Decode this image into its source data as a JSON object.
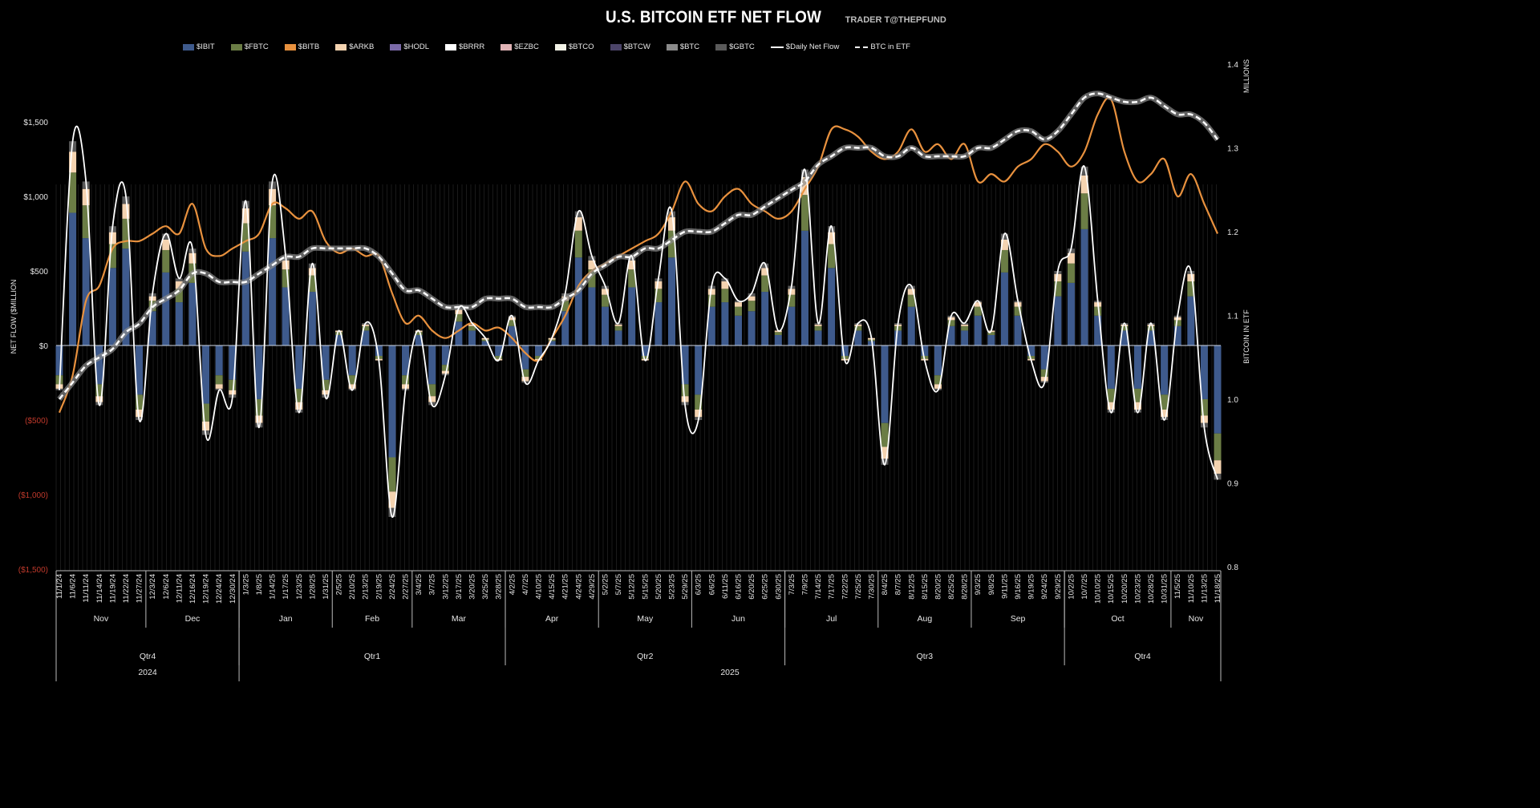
{
  "header": {
    "title": "U.S. BITCOIN ETF NET FLOW",
    "subtitle": "TRADER T@THEPFUND"
  },
  "legend": [
    {
      "label": "$IBIT",
      "color": "#3e5a8c",
      "kind": "bar"
    },
    {
      "label": "$FBTC",
      "color": "#6b7d45",
      "kind": "bar"
    },
    {
      "label": "$BITB",
      "color": "#e8913e",
      "kind": "bar"
    },
    {
      "label": "$ARKB",
      "color": "#f4d3b0",
      "kind": "bar"
    },
    {
      "label": "$HODL",
      "color": "#7b6aa8",
      "kind": "bar"
    },
    {
      "label": "$BRRR",
      "color": "#ffffff",
      "kind": "bar"
    },
    {
      "label": "$EZBC",
      "color": "#e0b4b6",
      "kind": "bar"
    },
    {
      "label": "$BTCO",
      "color": "#f2f2e6",
      "kind": "bar"
    },
    {
      "label": "$BTCW",
      "color": "#4b4468",
      "kind": "bar"
    },
    {
      "label": "$BTC",
      "color": "#8a8a8a",
      "kind": "bar"
    },
    {
      "label": "$GBTC",
      "color": "#5a5a5a",
      "kind": "bar"
    },
    {
      "label": "$Daily Net Flow",
      "color": "#ffffff",
      "kind": "line"
    },
    {
      "label": "BTC in ETF",
      "color": "#ffffff",
      "kind": "dash"
    }
  ],
  "chart_data": {
    "type": "bar",
    "title": "U.S. BITCOIN ETF NET FLOW",
    "ylabel": "NET FLOW ($MILLION",
    "y2label": "BITCOIN IN ETF",
    "y2unit": "MILLIONS",
    "ylim": [
      -1500,
      1500
    ],
    "y2lim": [
      0.8,
      1.4
    ],
    "yticks": [
      "$1,500",
      "$1,000",
      "$500",
      "$0",
      "($500)",
      "($1,000)",
      "($1,500)"
    ],
    "yticks_values": [
      1500,
      1000,
      500,
      0,
      -500,
      -1000,
      -1500
    ],
    "y2ticks": [
      "1.4",
      "1.3",
      "1.2",
      "1.1",
      "1.0",
      "0.9",
      "0.8"
    ],
    "y2ticks_values": [
      1.4,
      1.3,
      1.2,
      1.1,
      1.0,
      0.9,
      0.8
    ],
    "categories": [
      "11/1/24",
      "11/6/24",
      "11/11/24",
      "11/14/24",
      "11/19/24",
      "11/22/24",
      "11/27/24",
      "12/3/24",
      "12/6/24",
      "12/11/24",
      "12/16/24",
      "12/19/24",
      "12/24/24",
      "12/30/24",
      "1/3/25",
      "1/8/25",
      "1/14/25",
      "1/17/25",
      "1/23/25",
      "1/28/25",
      "1/31/25",
      "2/5/25",
      "2/10/25",
      "2/13/25",
      "2/19/25",
      "2/24/25",
      "2/27/25",
      "3/4/25",
      "3/7/25",
      "3/12/25",
      "3/17/25",
      "3/20/25",
      "3/25/25",
      "3/28/25",
      "4/2/25",
      "4/7/25",
      "4/10/25",
      "4/15/25",
      "4/21/25",
      "4/24/25",
      "4/29/25",
      "5/2/25",
      "5/7/25",
      "5/12/25",
      "5/15/25",
      "5/20/25",
      "5/23/25",
      "5/29/25",
      "6/3/25",
      "6/6/25",
      "6/11/25",
      "6/16/25",
      "6/20/25",
      "6/25/25",
      "6/30/25",
      "7/3/25",
      "7/9/25",
      "7/14/25",
      "7/17/25",
      "7/22/25",
      "7/25/25",
      "7/30/25",
      "8/4/25",
      "8/7/25",
      "8/12/25",
      "8/15/25",
      "8/20/25",
      "8/25/25",
      "8/28/25",
      "9/3/25",
      "9/8/25",
      "9/11/25",
      "9/16/25",
      "9/19/25",
      "9/24/25",
      "9/29/25",
      "10/2/25",
      "10/7/25",
      "10/10/25",
      "10/15/25",
      "10/20/25",
      "10/23/25",
      "10/28/25",
      "10/31/25",
      "11/5/25",
      "11/10/25",
      "11/13/25",
      "11/18/25"
    ],
    "months": [
      {
        "label": "Nov",
        "start": 0,
        "end": 6
      },
      {
        "label": "Dec",
        "start": 7,
        "end": 13
      },
      {
        "label": "Jan",
        "start": 14,
        "end": 20
      },
      {
        "label": "Feb",
        "start": 21,
        "end": 26
      },
      {
        "label": "Mar",
        "start": 27,
        "end": 33
      },
      {
        "label": "Apr",
        "start": 34,
        "end": 40
      },
      {
        "label": "May",
        "start": 41,
        "end": 47
      },
      {
        "label": "Jun",
        "start": 48,
        "end": 54
      },
      {
        "label": "Jul",
        "start": 55,
        "end": 61
      },
      {
        "label": "Aug",
        "start": 62,
        "end": 68
      },
      {
        "label": "Sep",
        "start": 69,
        "end": 75
      },
      {
        "label": "Oct",
        "start": 76,
        "end": 83
      },
      {
        "label": "Nov",
        "start": 84,
        "end": 87
      }
    ],
    "quarters": [
      {
        "label": "Qtr4",
        "start": 0,
        "end": 13
      },
      {
        "label": "Qtr1",
        "start": 14,
        "end": 33
      },
      {
        "label": "Qtr2",
        "start": 34,
        "end": 54
      },
      {
        "label": "Qtr3",
        "start": 55,
        "end": 75
      },
      {
        "label": "Qtr4",
        "start": 76,
        "end": 87
      }
    ],
    "years": [
      {
        "label": "2024",
        "start": 0,
        "end": 13
      },
      {
        "label": "2025",
        "start": 14,
        "end": 87
      }
    ],
    "series": [
      {
        "name": "$IBIT",
        "color": "#3e5a8c",
        "values": [
          -200,
          890,
          720,
          -260,
          520,
          650,
          -330,
          230,
          490,
          290,
          420,
          -390,
          -200,
          -230,
          630,
          -360,
          720,
          390,
          -290,
          360,
          -230,
          70,
          -200,
          100,
          -70,
          -750,
          -200,
          70,
          -260,
          -130,
          160,
          100,
          30,
          -70,
          130,
          -160,
          -70,
          30,
          230,
          590,
          390,
          260,
          100,
          390,
          -70,
          290,
          590,
          -260,
          -330,
          260,
          290,
          200,
          230,
          360,
          70,
          260,
          770,
          100,
          520,
          -70,
          100,
          30,
          -520,
          100,
          260,
          -70,
          -200,
          130,
          100,
          200,
          70,
          490,
          200,
          -70,
          -160,
          330,
          420,
          780,
          200,
          -290,
          100,
          -290,
          100,
          -330,
          130,
          330,
          -360,
          -590
        ]
      },
      {
        "name": "$FBTC",
        "color": "#6b7d45",
        "values": [
          -60,
          270,
          220,
          -80,
          160,
          200,
          -100,
          70,
          150,
          90,
          130,
          -120,
          -60,
          -70,
          190,
          -110,
          220,
          120,
          -90,
          110,
          -70,
          20,
          -60,
          30,
          -20,
          -230,
          -60,
          20,
          -80,
          -40,
          50,
          30,
          10,
          -20,
          40,
          -50,
          -20,
          10,
          70,
          180,
          120,
          80,
          30,
          120,
          -20,
          90,
          180,
          -80,
          -100,
          80,
          90,
          60,
          70,
          110,
          20,
          80,
          240,
          30,
          160,
          -20,
          30,
          10,
          -160,
          30,
          80,
          -20,
          -60,
          40,
          30,
          60,
          20,
          150,
          60,
          -20,
          -50,
          100,
          130,
          240,
          60,
          -90,
          30,
          -90,
          30,
          -100,
          40,
          100,
          -110,
          -180
        ]
      },
      {
        "name": "$ARKB",
        "color": "#f4d3b0",
        "values": [
          -30,
          140,
          110,
          -40,
          80,
          100,
          -50,
          30,
          70,
          50,
          70,
          -60,
          -30,
          -30,
          100,
          -50,
          110,
          60,
          -50,
          50,
          -30,
          10,
          -30,
          10,
          -10,
          -110,
          -30,
          10,
          -40,
          -20,
          30,
          10,
          10,
          -10,
          20,
          -30,
          -10,
          10,
          30,
          90,
          60,
          40,
          10,
          60,
          -10,
          50,
          90,
          -40,
          -50,
          40,
          50,
          30,
          30,
          50,
          10,
          40,
          120,
          10,
          80,
          -10,
          10,
          10,
          -80,
          10,
          40,
          -10,
          -30,
          20,
          10,
          30,
          10,
          70,
          30,
          -10,
          -30,
          50,
          70,
          120,
          30,
          -50,
          10,
          -50,
          10,
          -50,
          20,
          50,
          -50,
          -90
        ]
      },
      {
        "name": "$GBTC",
        "color": "#5a5a5a",
        "values": [
          -10,
          70,
          50,
          -20,
          40,
          50,
          -20,
          20,
          40,
          20,
          30,
          -30,
          -10,
          -20,
          50,
          -30,
          50,
          30,
          -20,
          30,
          -20,
          0,
          -10,
          10,
          0,
          -60,
          -10,
          0,
          -20,
          -10,
          10,
          10,
          0,
          0,
          10,
          -10,
          0,
          0,
          20,
          40,
          30,
          20,
          10,
          30,
          0,
          20,
          40,
          -20,
          -20,
          20,
          20,
          10,
          20,
          30,
          0,
          20,
          50,
          10,
          40,
          0,
          10,
          0,
          -40,
          10,
          20,
          0,
          -10,
          10,
          10,
          10,
          0,
          40,
          10,
          0,
          -10,
          20,
          30,
          60,
          10,
          -20,
          10,
          -20,
          10,
          -20,
          10,
          20,
          -30,
          -40
        ]
      },
      {
        "name": "$Daily Net Flow",
        "type": "line",
        "color": "#ffffff",
        "values": [
          -300,
          1370,
          1100,
          -400,
          800,
          1000,
          -500,
          350,
          750,
          450,
          650,
          -600,
          -300,
          -350,
          970,
          -550,
          1100,
          600,
          -450,
          550,
          -350,
          100,
          -300,
          150,
          -100,
          -1150,
          -300,
          100,
          -400,
          -200,
          250,
          150,
          50,
          -100,
          200,
          -250,
          -100,
          50,
          350,
          900,
          600,
          400,
          150,
          600,
          -100,
          450,
          900,
          -400,
          -500,
          400,
          450,
          300,
          350,
          550,
          100,
          400,
          1180,
          150,
          800,
          -100,
          150,
          50,
          -800,
          150,
          400,
          -100,
          -300,
          200,
          150,
          300,
          100,
          750,
          300,
          -100,
          -250,
          500,
          650,
          1200,
          300,
          -450,
          150,
          -450,
          150,
          -500,
          200,
          500,
          -550,
          -900
        ]
      },
      {
        "name": "BTC in ETF",
        "type": "line",
        "axis": "right",
        "color": "#ffffff",
        "values": [
          1.0,
          1.02,
          1.04,
          1.05,
          1.06,
          1.08,
          1.09,
          1.11,
          1.12,
          1.13,
          1.15,
          1.15,
          1.14,
          1.14,
          1.14,
          1.15,
          1.16,
          1.17,
          1.17,
          1.18,
          1.18,
          1.18,
          1.18,
          1.18,
          1.17,
          1.15,
          1.13,
          1.13,
          1.12,
          1.11,
          1.11,
          1.11,
          1.12,
          1.12,
          1.12,
          1.11,
          1.11,
          1.11,
          1.12,
          1.13,
          1.15,
          1.16,
          1.17,
          1.17,
          1.18,
          1.18,
          1.19,
          1.2,
          1.2,
          1.2,
          1.21,
          1.22,
          1.22,
          1.23,
          1.24,
          1.25,
          1.26,
          1.28,
          1.29,
          1.3,
          1.3,
          1.3,
          1.29,
          1.29,
          1.3,
          1.29,
          1.29,
          1.29,
          1.29,
          1.3,
          1.3,
          1.31,
          1.32,
          1.32,
          1.31,
          1.32,
          1.34,
          1.36,
          1.365,
          1.36,
          1.355,
          1.355,
          1.36,
          1.35,
          1.34,
          1.34,
          1.33,
          1.31
        ]
      },
      {
        "name": "",
        "type": "line",
        "color": "#e8913e",
        "values": [
          -450,
          -200,
          300,
          400,
          650,
          700,
          700,
          750,
          800,
          750,
          950,
          650,
          600,
          650,
          700,
          750,
          950,
          920,
          850,
          900,
          700,
          620,
          650,
          600,
          600,
          350,
          150,
          200,
          100,
          50,
          100,
          150,
          100,
          120,
          50,
          -50,
          -100,
          50,
          200,
          400,
          500,
          550,
          600,
          650,
          700,
          750,
          900,
          1100,
          950,
          900,
          1000,
          1050,
          950,
          900,
          850,
          900,
          1050,
          1200,
          1450,
          1450,
          1400,
          1300,
          1250,
          1300,
          1450,
          1300,
          1350,
          1250,
          1350,
          1100,
          1150,
          1100,
          1200,
          1250,
          1350,
          1300,
          1200,
          1300,
          1550,
          1650,
          1300,
          1100,
          1150,
          1250,
          1000,
          1150,
          950,
          750
        ]
      }
    ],
    "grid": false,
    "legend_position": "top"
  }
}
